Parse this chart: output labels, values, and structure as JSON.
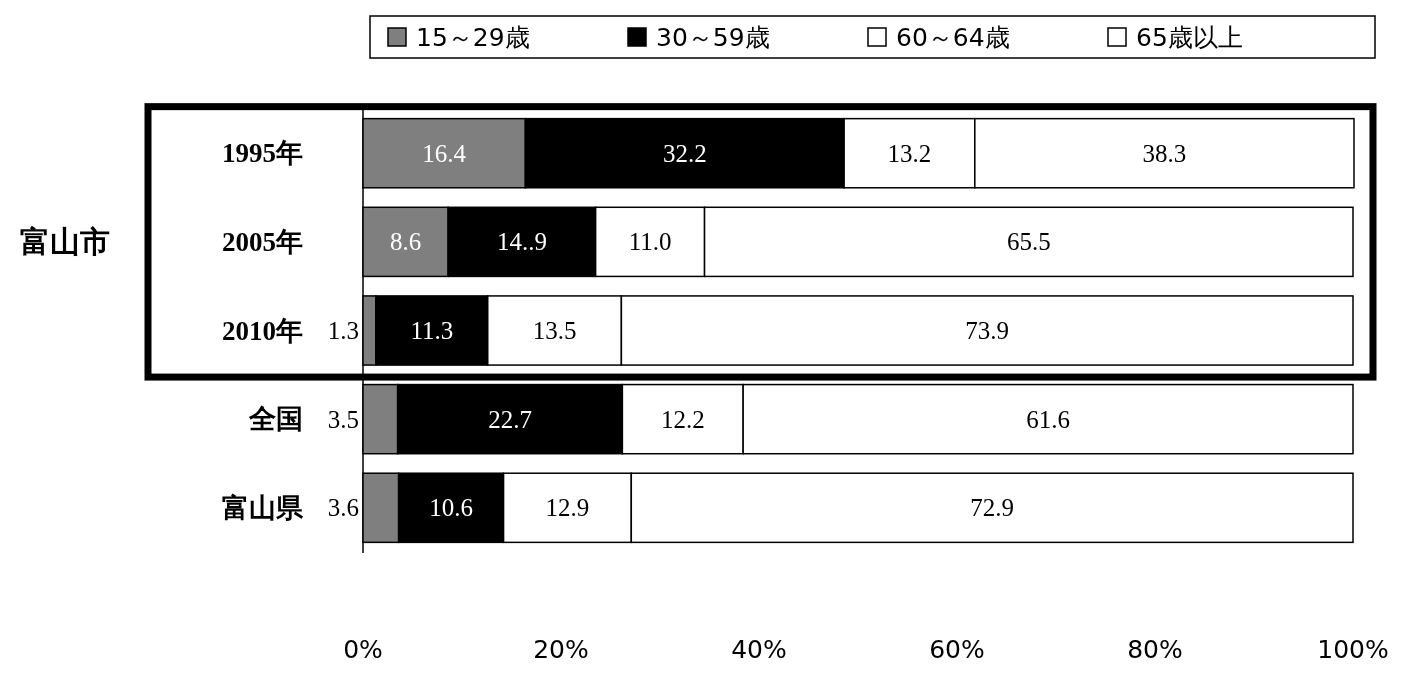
{
  "chart_data": {
    "type": "bar",
    "orientation": "horizontal",
    "stacked": true,
    "categories": [
      "1995年",
      "2005年",
      "2010年",
      "全国",
      "富山県"
    ],
    "series": [
      {
        "name": "15～29歳",
        "color": "#7f7f7f",
        "values": [
          16.4,
          8.6,
          1.3,
          3.5,
          3.6
        ],
        "value_labels": [
          "16.4",
          "8.6",
          "1.3",
          "3.5",
          "3.6"
        ]
      },
      {
        "name": "30～59歳",
        "color": "#000000",
        "values": [
          32.2,
          14.9,
          11.3,
          22.7,
          10.6
        ],
        "value_labels": [
          "32.2",
          "14..9",
          "11.3",
          "22.7",
          "10.6"
        ]
      },
      {
        "name": "60～64歳",
        "color": "#ffffff",
        "values": [
          13.2,
          11.0,
          13.5,
          12.2,
          12.9
        ],
        "value_labels": [
          "13.2",
          "11.0",
          "13.5",
          "12.2",
          "12.9"
        ]
      },
      {
        "name": "65歳以上",
        "color": "#ffffff",
        "values": [
          38.3,
          65.5,
          73.9,
          61.6,
          72.9
        ],
        "value_labels": [
          "38.3",
          "65.5",
          "73.9",
          "61.6",
          "72.9"
        ]
      }
    ],
    "xlim": [
      0,
      100
    ],
    "xticks": [
      {
        "value": 0,
        "label": "0%"
      },
      {
        "value": 20,
        "label": "20%"
      },
      {
        "value": 40,
        "label": "40%"
      },
      {
        "value": 60,
        "label": "60%"
      },
      {
        "value": 80,
        "label": "80%"
      },
      {
        "value": 100,
        "label": "100%"
      }
    ],
    "legend": "top",
    "annotations": [
      "富山市"
    ]
  }
}
